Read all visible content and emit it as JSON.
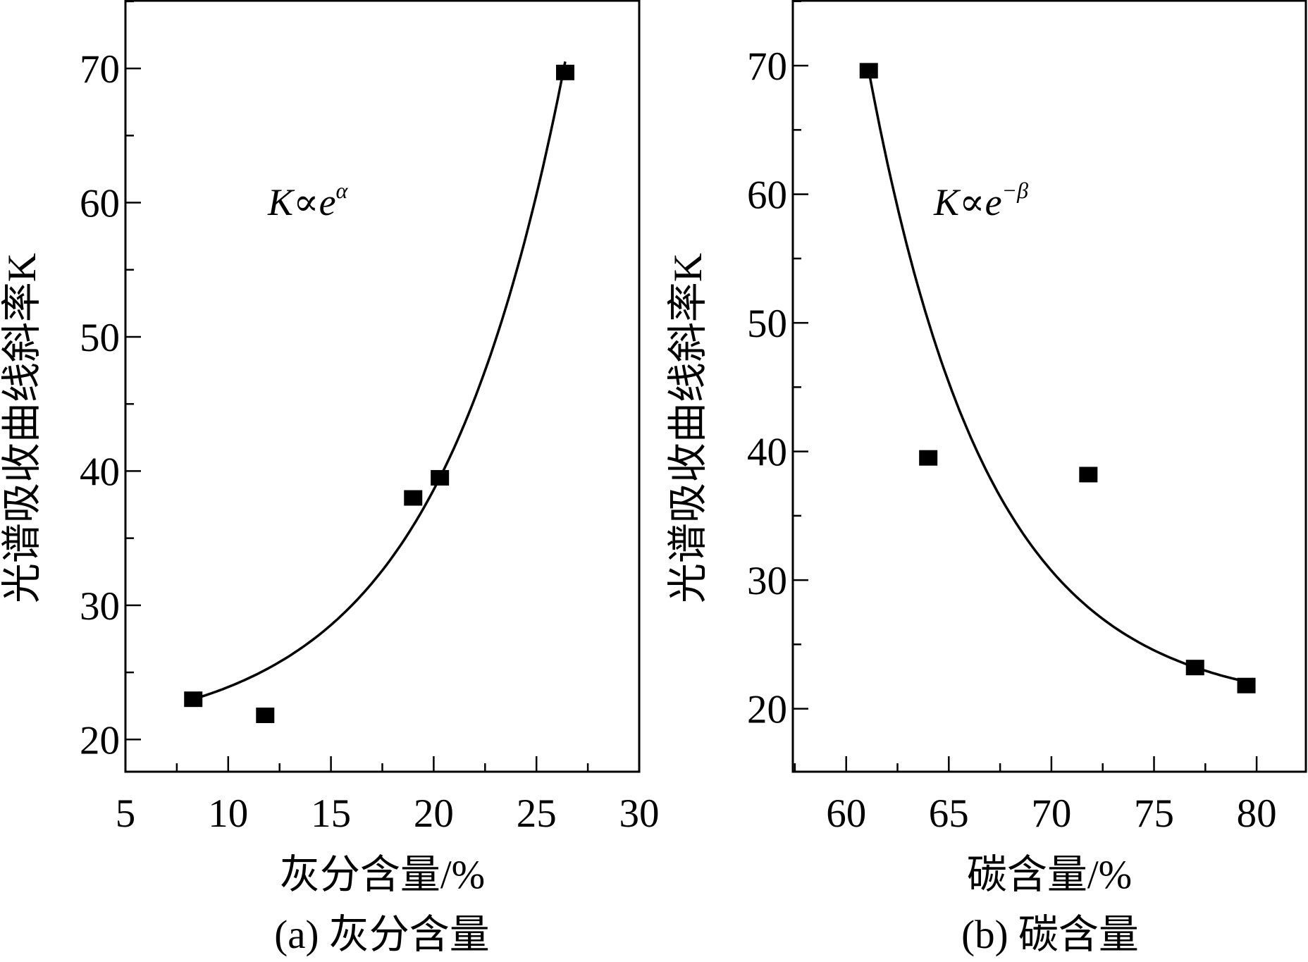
{
  "chart_data": [
    {
      "type": "scatter",
      "title": "(a) 灰分含量",
      "xlabel": "灰分含量/%",
      "ylabel": "光谱吸收曲线斜率K",
      "annotation": {
        "base": "K∝e",
        "exponent": "α"
      },
      "xlim": [
        5,
        30
      ],
      "ylim": [
        17.6,
        75.1
      ],
      "xticks": [
        5,
        10,
        15,
        20,
        25,
        30
      ],
      "yticks": [
        20,
        30,
        40,
        50,
        60,
        70
      ],
      "grid": false,
      "marker": "square",
      "points": {
        "x": [
          8.3,
          11.8,
          19.0,
          20.3,
          26.4
        ],
        "y": [
          23.0,
          21.8,
          38.0,
          39.5,
          69.7
        ]
      },
      "fit": {
        "form": "y = y0 + b*exp(c*(x - x0))",
        "y0": 20,
        "b": 3,
        "c": 0.156,
        "x0": 8.3,
        "range": [
          8.3,
          26.4
        ]
      }
    },
    {
      "type": "scatter",
      "title": "(b) 碳含量",
      "xlabel": "碳含量/%",
      "ylabel": "光谱吸收曲线斜率K",
      "annotation": {
        "base": "K∝e",
        "exponent": "−β"
      },
      "xlim": [
        57.4,
        82.4
      ],
      "ylim": [
        15.1,
        75.1
      ],
      "xticks": [
        60,
        65,
        70,
        75,
        80
      ],
      "yticks": [
        20,
        30,
        40,
        50,
        60,
        70
      ],
      "grid": false,
      "marker": "square",
      "points": {
        "x": [
          61.1,
          64.0,
          71.8,
          77.0,
          79.5
        ],
        "y": [
          69.6,
          39.5,
          38.2,
          23.2,
          21.8
        ]
      },
      "fit": {
        "form": "y = y0 + b*exp(c*(x - x0))",
        "y0": 20,
        "b": 49.6,
        "c": -0.172,
        "x0": 61.1,
        "range": [
          61.1,
          79.5
        ]
      }
    }
  ]
}
